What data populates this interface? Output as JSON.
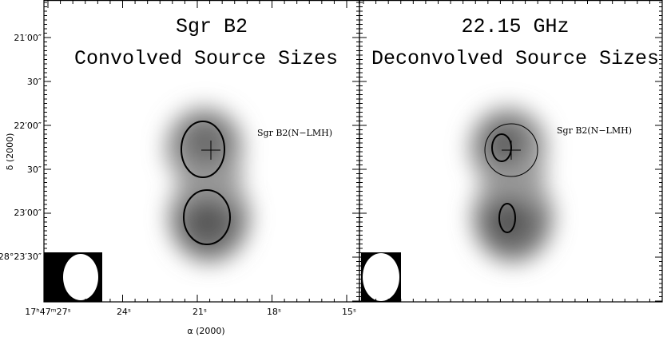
{
  "panels": [
    {
      "title": "Sgr B2",
      "subtitle": "Convolved Source Sizes",
      "source_label": "Sgr B2(N−LMH)"
    },
    {
      "title": "22.15 GHz",
      "subtitle": "Deconvolved Source Sizes",
      "source_label": "Sgr B2(N−LMH)"
    }
  ],
  "y_axis": {
    "label": "δ (2000)",
    "ticks": [
      "21′00″",
      "30″",
      "22′00″",
      "30″",
      "23′00″",
      "−28°23′30″"
    ]
  },
  "x_axis": {
    "label": "α (2000)",
    "ticks": [
      "17ʰ47ᵐ27ˢ",
      "24ˢ",
      "21ˢ",
      "18ˢ",
      "15ˢ"
    ]
  }
}
